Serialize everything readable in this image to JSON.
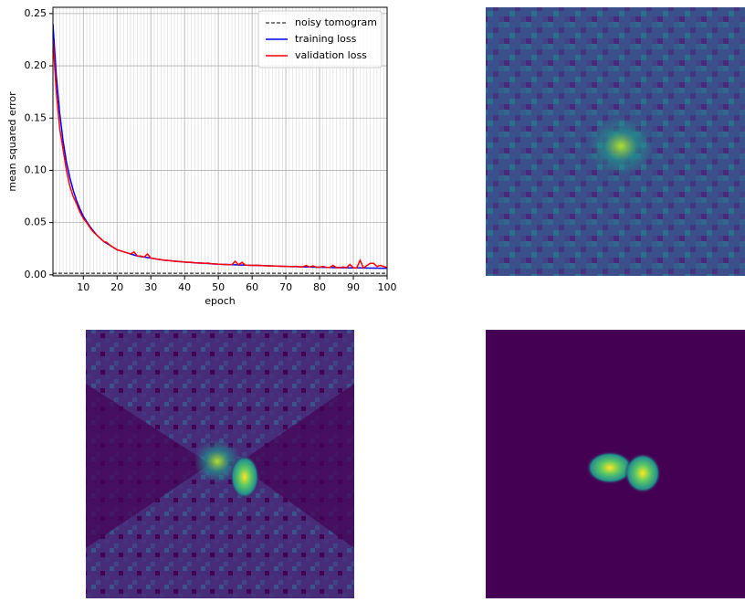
{
  "chart_data": {
    "type": "line",
    "xlabel": "epoch",
    "ylabel": "mean squared error",
    "x": [
      1,
      2,
      3,
      4,
      5,
      6,
      7,
      8,
      9,
      10,
      11,
      12,
      13,
      14,
      15,
      16,
      17,
      18,
      19,
      20,
      21,
      22,
      23,
      24,
      25,
      26,
      27,
      28,
      29,
      30,
      31,
      32,
      33,
      34,
      35,
      36,
      37,
      38,
      39,
      40,
      41,
      42,
      43,
      44,
      45,
      46,
      47,
      48,
      49,
      50,
      51,
      52,
      53,
      54,
      55,
      56,
      57,
      58,
      59,
      60,
      61,
      62,
      63,
      64,
      65,
      66,
      67,
      68,
      69,
      70,
      71,
      72,
      73,
      74,
      75,
      76,
      77,
      78,
      79,
      80,
      81,
      82,
      83,
      84,
      85,
      86,
      87,
      88,
      89,
      90,
      91,
      92,
      93,
      94,
      95,
      96,
      97,
      98,
      99,
      100
    ],
    "series": [
      {
        "name": "training loss",
        "color": "#0000ff",
        "values": [
          0.24,
          0.19,
          0.155,
          0.128,
          0.108,
          0.093,
          0.081,
          0.071,
          0.063,
          0.056,
          0.051,
          0.046,
          0.042,
          0.038,
          0.035,
          0.032,
          0.03,
          0.028,
          0.026,
          0.024,
          0.023,
          0.022,
          0.021,
          0.02,
          0.019,
          0.018,
          0.0175,
          0.017,
          0.0165,
          0.016,
          0.0155,
          0.015,
          0.0145,
          0.014,
          0.0137,
          0.0134,
          0.0131,
          0.0128,
          0.0125,
          0.0122,
          0.012,
          0.0118,
          0.0116,
          0.0114,
          0.0112,
          0.011,
          0.0108,
          0.0106,
          0.0104,
          0.0102,
          0.01,
          0.0099,
          0.0098,
          0.0097,
          0.0096,
          0.0095,
          0.0094,
          0.0093,
          0.0092,
          0.0091,
          0.009,
          0.0089,
          0.0088,
          0.0087,
          0.0086,
          0.0085,
          0.0084,
          0.0083,
          0.0082,
          0.0081,
          0.008,
          0.0079,
          0.0078,
          0.0077,
          0.0076,
          0.0075,
          0.0075,
          0.0074,
          0.0073,
          0.0073,
          0.0072,
          0.0071,
          0.0071,
          0.007,
          0.0069,
          0.0069,
          0.0068,
          0.0068,
          0.0067,
          0.0067,
          0.0066,
          0.0066,
          0.0065,
          0.0065,
          0.0064,
          0.0064,
          0.0064,
          0.0063,
          0.0063,
          0.0063
        ]
      },
      {
        "name": "validation loss",
        "color": "#ff0000",
        "values": [
          0.225,
          0.175,
          0.14,
          0.12,
          0.1,
          0.085,
          0.075,
          0.068,
          0.06,
          0.054,
          0.05,
          0.045,
          0.041,
          0.038,
          0.035,
          0.032,
          0.031,
          0.028,
          0.026,
          0.024,
          0.023,
          0.022,
          0.021,
          0.02,
          0.022,
          0.018,
          0.018,
          0.017,
          0.02,
          0.016,
          0.0155,
          0.015,
          0.0145,
          0.014,
          0.0138,
          0.0134,
          0.013,
          0.0128,
          0.0125,
          0.0122,
          0.012,
          0.012,
          0.0115,
          0.0114,
          0.0112,
          0.011,
          0.0112,
          0.0106,
          0.0104,
          0.0102,
          0.01,
          0.0099,
          0.0098,
          0.0097,
          0.013,
          0.0095,
          0.012,
          0.0093,
          0.0092,
          0.0091,
          0.009,
          0.0092,
          0.0088,
          0.0087,
          0.0086,
          0.0085,
          0.0084,
          0.0083,
          0.0082,
          0.0081,
          0.008,
          0.0079,
          0.0082,
          0.0077,
          0.0076,
          0.009,
          0.0075,
          0.0085,
          0.0073,
          0.0073,
          0.008,
          0.0071,
          0.0071,
          0.009,
          0.0069,
          0.0069,
          0.0075,
          0.0068,
          0.01,
          0.0067,
          0.0066,
          0.014,
          0.0065,
          0.009,
          0.011,
          0.011,
          0.008,
          0.009,
          0.008,
          0.007
        ]
      }
    ],
    "reference_lines": [
      {
        "name": "noisy tomogram",
        "color": "#000000",
        "value": 0.0015,
        "dashed": true
      }
    ],
    "xlim": [
      1,
      100
    ],
    "ylim": [
      -0.001,
      0.256
    ],
    "xticks": [
      10,
      20,
      30,
      40,
      50,
      60,
      70,
      80,
      90,
      100
    ],
    "yticks": [
      {
        "value": 0,
        "label": "0.00"
      },
      {
        "value": 0.05,
        "label": "0.05"
      },
      {
        "value": 0.1,
        "label": "0.10"
      },
      {
        "value": 0.15,
        "label": "0.15"
      },
      {
        "value": 0.2,
        "label": "0.20"
      },
      {
        "value": 0.25,
        "label": "0.25"
      }
    ],
    "x_minor_step": 1,
    "grid": true,
    "legend": "upper right"
  }
}
